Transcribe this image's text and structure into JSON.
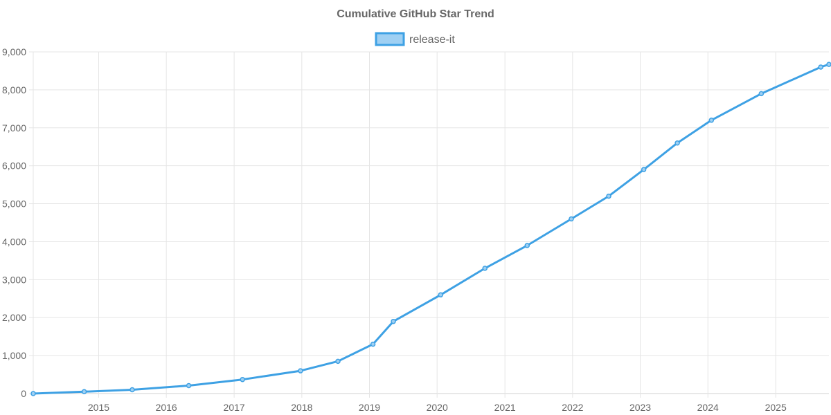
{
  "chart_data": {
    "type": "line",
    "title": "Cumulative GitHub Star Trend",
    "xlabel": "",
    "ylabel": "",
    "legend_position": "top-center",
    "grid": true,
    "colors": {
      "series": "#3ea1e4",
      "legend_fill": "#9fd0f3",
      "text": "#666666",
      "grid": "#e5e5e5"
    },
    "x_ticks": [
      "2015",
      "2016",
      "2017",
      "2018",
      "2019",
      "2020",
      "2021",
      "2022",
      "2023",
      "2024",
      "2025"
    ],
    "y_ticks": [
      "0",
      "1,000",
      "2,000",
      "3,000",
      "4,000",
      "5,000",
      "6,000",
      "7,000",
      "8,000",
      "9,000"
    ],
    "xlim": [
      "2014-01-13",
      "2025-10-15"
    ],
    "ylim": [
      0,
      9000
    ],
    "series": [
      {
        "name": "release-it",
        "points": [
          {
            "x": "2014-01-13",
            "y": 0
          },
          {
            "x": "2014-10-15",
            "y": 50
          },
          {
            "x": "2015-07-01",
            "y": 100
          },
          {
            "x": "2016-05-01",
            "y": 210
          },
          {
            "x": "2017-02-15",
            "y": 370
          },
          {
            "x": "2017-12-25",
            "y": 600
          },
          {
            "x": "2018-07-15",
            "y": 850
          },
          {
            "x": "2019-01-20",
            "y": 1300
          },
          {
            "x": "2019-05-10",
            "y": 1900
          },
          {
            "x": "2020-01-20",
            "y": 2600
          },
          {
            "x": "2020-09-15",
            "y": 3300
          },
          {
            "x": "2021-05-01",
            "y": 3900
          },
          {
            "x": "2021-12-25",
            "y": 4600
          },
          {
            "x": "2022-07-15",
            "y": 5200
          },
          {
            "x": "2023-01-20",
            "y": 5900
          },
          {
            "x": "2023-07-20",
            "y": 6600
          },
          {
            "x": "2024-01-20",
            "y": 7200
          },
          {
            "x": "2024-10-15",
            "y": 7900
          },
          {
            "x": "2025-09-01",
            "y": 8600
          },
          {
            "x": "2025-10-15",
            "y": 8670
          }
        ]
      }
    ]
  }
}
